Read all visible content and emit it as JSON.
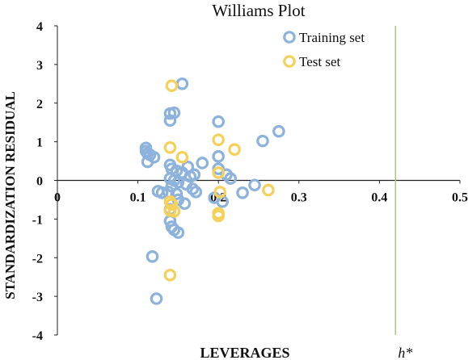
{
  "chart_data": {
    "type": "scatter",
    "title": "Williams Plot",
    "xlabel": "LEVERAGES",
    "ylabel": "STANDARDIZATION RESIDUAL",
    "xlim": [
      0,
      0.5
    ],
    "ylim": [
      -4,
      4
    ],
    "x_ticks": [
      "0",
      "0.1",
      "0.2",
      "0.3",
      "0.4",
      "0.5"
    ],
    "y_ticks": [
      "4",
      "3",
      "2",
      "1",
      "0",
      "-1",
      "-2",
      "-3",
      "-4"
    ],
    "grid": false,
    "legend_position": "top-right",
    "threshold": {
      "label": "h*",
      "x": 0.42,
      "color": "#a9c98b"
    },
    "series": [
      {
        "name": "Training set",
        "color": "#8db3dd",
        "points": [
          [
            0.11,
            0.84
          ],
          [
            0.11,
            0.76
          ],
          [
            0.112,
            0.7
          ],
          [
            0.115,
            0.66
          ],
          [
            0.12,
            0.6
          ],
          [
            0.112,
            0.48
          ],
          [
            0.125,
            -0.28
          ],
          [
            0.13,
            -0.32
          ],
          [
            0.118,
            -1.97
          ],
          [
            0.123,
            -3.06
          ],
          [
            0.14,
            1.73
          ],
          [
            0.145,
            1.75
          ],
          [
            0.14,
            1.55
          ],
          [
            0.155,
            2.5
          ],
          [
            0.14,
            0.4
          ],
          [
            0.142,
            0.3
          ],
          [
            0.148,
            0.25
          ],
          [
            0.155,
            0.2
          ],
          [
            0.14,
            0.05
          ],
          [
            0.145,
            0.0
          ],
          [
            0.15,
            -0.05
          ],
          [
            0.142,
            -0.15
          ],
          [
            0.138,
            -0.3
          ],
          [
            0.148,
            -0.35
          ],
          [
            0.15,
            -0.5
          ],
          [
            0.14,
            -0.75
          ],
          [
            0.14,
            -1.05
          ],
          [
            0.142,
            -1.2
          ],
          [
            0.145,
            -1.28
          ],
          [
            0.15,
            -1.35
          ],
          [
            0.162,
            0.35
          ],
          [
            0.17,
            0.15
          ],
          [
            0.165,
            0.1
          ],
          [
            0.16,
            -0.1
          ],
          [
            0.168,
            -0.22
          ],
          [
            0.172,
            -0.3
          ],
          [
            0.158,
            -0.6
          ],
          [
            0.18,
            0.45
          ],
          [
            0.2,
            1.52
          ],
          [
            0.2,
            0.62
          ],
          [
            0.2,
            0.3
          ],
          [
            0.21,
            0.15
          ],
          [
            0.215,
            0.05
          ],
          [
            0.195,
            -0.45
          ],
          [
            0.205,
            -0.55
          ],
          [
            0.23,
            -0.32
          ],
          [
            0.245,
            -0.12
          ],
          [
            0.255,
            1.02
          ],
          [
            0.275,
            1.27
          ]
        ]
      },
      {
        "name": "Test set",
        "color": "#f5d15b",
        "points": [
          [
            0.142,
            2.45
          ],
          [
            0.14,
            0.85
          ],
          [
            0.155,
            0.6
          ],
          [
            0.14,
            -0.55
          ],
          [
            0.142,
            -0.62
          ],
          [
            0.14,
            -0.78
          ],
          [
            0.145,
            -0.8
          ],
          [
            0.14,
            -2.45
          ],
          [
            0.2,
            1.05
          ],
          [
            0.2,
            0.2
          ],
          [
            0.202,
            -0.3
          ],
          [
            0.2,
            -0.85
          ],
          [
            0.2,
            -0.92
          ],
          [
            0.22,
            0.8
          ],
          [
            0.262,
            -0.25
          ]
        ]
      }
    ]
  }
}
